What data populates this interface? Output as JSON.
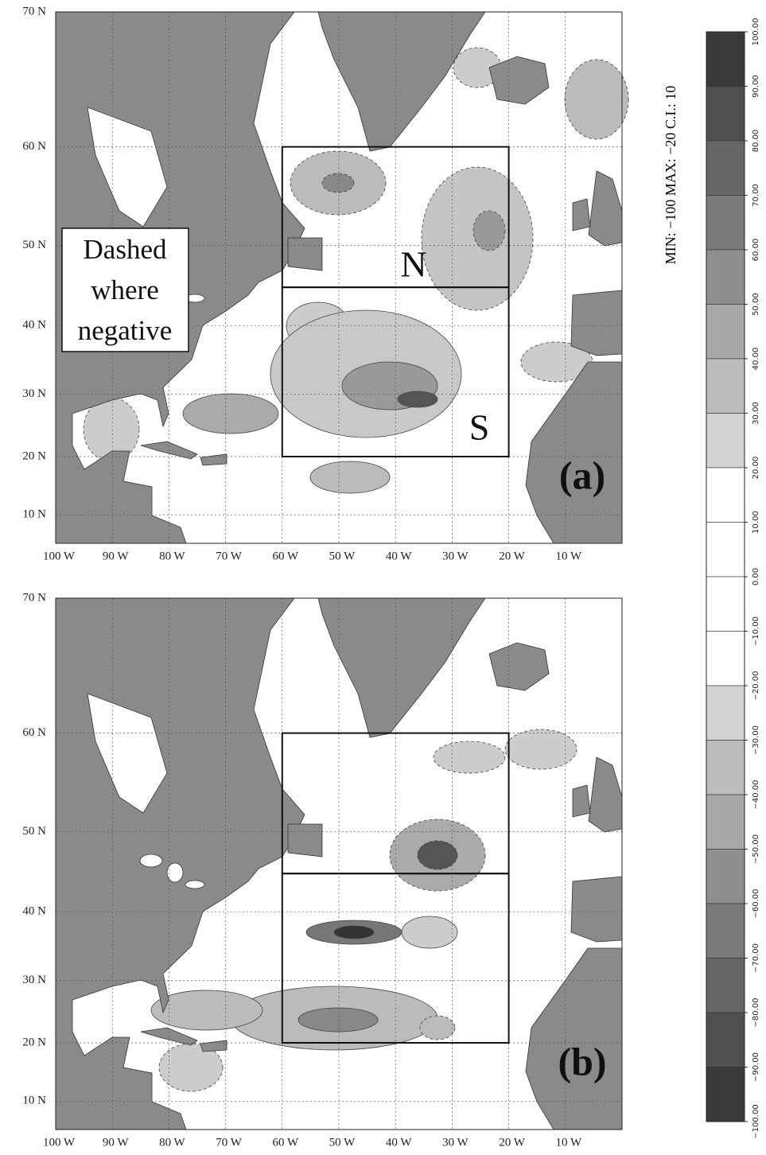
{
  "map": {
    "xlim": [
      -100,
      0
    ],
    "ylim": [
      5,
      70
    ]
  },
  "panels": [
    {
      "label": "(a)",
      "lat_ticks": [
        {
          "value": 70,
          "label": "70 N"
        },
        {
          "value": 60,
          "label": "60 N"
        },
        {
          "value": 50,
          "label": "50 N"
        },
        {
          "value": 40,
          "label": "40 N"
        },
        {
          "value": 30,
          "label": "30 N"
        },
        {
          "value": 20,
          "label": "20 N"
        },
        {
          "value": 10,
          "label": "10 N"
        }
      ],
      "lon_ticks": [
        {
          "value": -100,
          "label": "100 W"
        },
        {
          "value": -90,
          "label": "90 W"
        },
        {
          "value": -80,
          "label": "80 W"
        },
        {
          "value": -70,
          "label": "70 W"
        },
        {
          "value": -60,
          "label": "60 W"
        },
        {
          "value": -50,
          "label": "50 W"
        },
        {
          "value": -40,
          "label": "40 W"
        },
        {
          "value": -30,
          "label": "30 W"
        },
        {
          "value": -20,
          "label": "20 W"
        },
        {
          "value": -10,
          "label": "10 W"
        }
      ],
      "boxes": [
        {
          "label": "N",
          "lon": [
            -60,
            -20
          ],
          "lat": [
            45,
            60
          ]
        },
        {
          "label": "S",
          "lon": [
            -60,
            -20
          ],
          "lat": [
            20,
            45
          ]
        }
      ],
      "annotation": [
        "Dashed",
        "where",
        "negative"
      ]
    },
    {
      "label": "(b)",
      "lat_ticks": [
        {
          "value": 70,
          "label": "70 N"
        },
        {
          "value": 60,
          "label": "60 N"
        },
        {
          "value": 50,
          "label": "50 N"
        },
        {
          "value": 40,
          "label": "40 N"
        },
        {
          "value": 30,
          "label": "30 N"
        },
        {
          "value": 20,
          "label": "20 N"
        },
        {
          "value": 10,
          "label": "10 N"
        }
      ],
      "lon_ticks": [
        {
          "value": -100,
          "label": "100 W"
        },
        {
          "value": -90,
          "label": "90 W"
        },
        {
          "value": -80,
          "label": "80 W"
        },
        {
          "value": -70,
          "label": "70 W"
        },
        {
          "value": -60,
          "label": "60 W"
        },
        {
          "value": -50,
          "label": "50 W"
        },
        {
          "value": -40,
          "label": "40 W"
        },
        {
          "value": -30,
          "label": "30 W"
        },
        {
          "value": -20,
          "label": "20 W"
        },
        {
          "value": -10,
          "label": "10 W"
        }
      ],
      "boxes": [
        {
          "lon": [
            -60,
            -20
          ],
          "lat": [
            45,
            60
          ]
        },
        {
          "lon": [
            -60,
            -20
          ],
          "lat": [
            20,
            45
          ]
        }
      ]
    }
  ],
  "contour_info": "MIN:  −100 MAX:  −20 C.I.: 10",
  "colorbar": {
    "ticks": [
      {
        "value": 100,
        "label": "100.00"
      },
      {
        "value": 90,
        "label": "90.00"
      },
      {
        "value": 80,
        "label": "80.00"
      },
      {
        "value": 70,
        "label": "70.00"
      },
      {
        "value": 60,
        "label": "60.00"
      },
      {
        "value": 50,
        "label": "50.00"
      },
      {
        "value": 40,
        "label": "40.00"
      },
      {
        "value": 30,
        "label": "30.00"
      },
      {
        "value": 20,
        "label": "20.00"
      },
      {
        "value": 10,
        "label": "10.00"
      },
      {
        "value": 0,
        "label": "0.00"
      },
      {
        "value": -10,
        "label": "−10.00"
      },
      {
        "value": -20,
        "label": "−20.00"
      },
      {
        "value": -30,
        "label": "−30.00"
      },
      {
        "value": -40,
        "label": "−40.00"
      },
      {
        "value": -50,
        "label": "−50.00"
      },
      {
        "value": -60,
        "label": "−60.00"
      },
      {
        "value": -70,
        "label": "−70.00"
      },
      {
        "value": -80,
        "label": "−80.00"
      },
      {
        "value": -90,
        "label": "−90.00"
      },
      {
        "value": -100,
        "label": "−100.00"
      }
    ],
    "colors": [
      "#3a3a3a",
      "#505050",
      "#666666",
      "#7a7a7a",
      "#8e8e8e",
      "#a8a8a8",
      "#bcbcbc",
      "#d2d2d2",
      "#ffffff",
      "#ffffff",
      "#ffffff",
      "#ffffff",
      "#d2d2d2",
      "#bcbcbc",
      "#a8a8a8",
      "#8e8e8e",
      "#7a7a7a",
      "#666666",
      "#505050",
      "#3a3a3a"
    ]
  }
}
